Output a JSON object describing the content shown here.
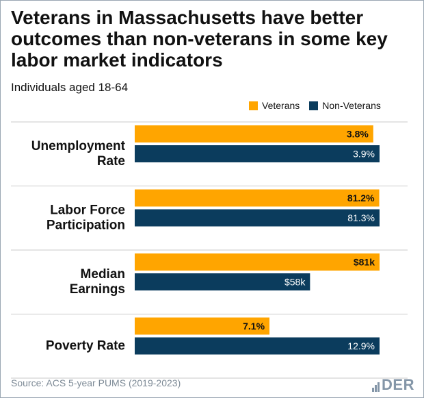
{
  "title": "Veterans in Massachusetts have better outcomes than non-veterans in some key labor market indicators",
  "subtitle": "Individuals aged 18-64",
  "source": "Source: ACS 5-year PUMS (2019-2023)",
  "logo_text": "DER",
  "colors": {
    "veterans": "#FFA500",
    "non_veterans": "#0B3C5D",
    "grid": "#c9c9c9"
  },
  "legend": [
    {
      "label": "Veterans",
      "color": "#FFA500"
    },
    {
      "label": "Non-Veterans",
      "color": "#0B3C5D"
    }
  ],
  "chart_data": {
    "type": "bar",
    "orientation": "horizontal",
    "categories": [
      "Unemployment Rate",
      "Labor Force Participation",
      "Median Earnings",
      "Poverty Rate"
    ],
    "series": [
      {
        "name": "Veterans",
        "values": [
          3.8,
          81.2,
          81,
          7.1
        ],
        "labels": [
          "3.8%",
          "81.2%",
          "$81k",
          "7.1%"
        ]
      },
      {
        "name": "Non-Veterans",
        "values": [
          3.9,
          81.3,
          58,
          12.9
        ],
        "labels": [
          "3.9%",
          "81.3%",
          "$58k",
          "12.9%"
        ]
      }
    ],
    "legend_position": "top-right",
    "grid": true,
    "note": "each indicator is scaled independently"
  }
}
